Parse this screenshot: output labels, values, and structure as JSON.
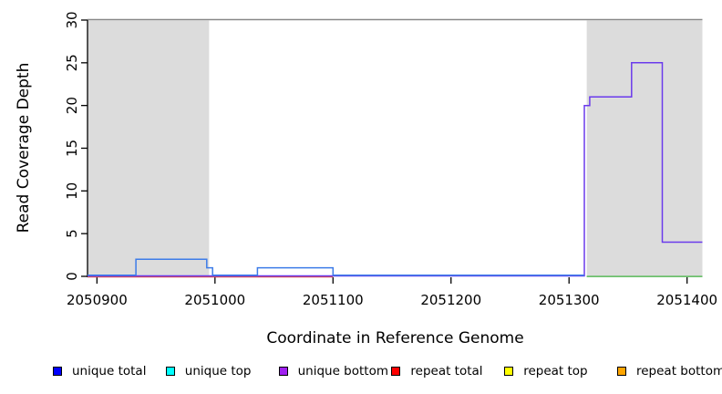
{
  "figure": {
    "background": "#ffffff",
    "plot_border_color": "#888888",
    "axis_color": "#000000",
    "shaded_region_color": "#dcdcdc"
  },
  "chart_data": {
    "type": "line",
    "title": "",
    "xlabel": "Coordinate in Reference Genome",
    "ylabel": "Read Coverage Depth",
    "xlim": [
      2050892,
      2051413
    ],
    "ylim": [
      0,
      30
    ],
    "grid": false,
    "x_ticks": [
      2050900,
      2051000,
      2051100,
      2051200,
      2051300,
      2051400
    ],
    "x_tick_labels": [
      "2050900",
      "2051000",
      "2051100",
      "2051200",
      "2051300",
      "2051400"
    ],
    "y_ticks": [
      0,
      5,
      10,
      15,
      20,
      25,
      30
    ],
    "y_tick_labels": [
      "0",
      "5",
      "10",
      "15",
      "20",
      "25",
      "30"
    ],
    "shaded_regions": [
      {
        "x_from": 2050892,
        "x_to": 2050995
      },
      {
        "x_from": 2051315,
        "x_to": 2051413
      }
    ],
    "series": [
      {
        "name": "repeat total",
        "line_color": "#e04848",
        "points": [
          [
            2050892,
            0
          ],
          [
            2051100,
            0
          ]
        ]
      },
      {
        "name": "unlabeled green",
        "line_color": "#58b858",
        "points": [
          [
            2051315,
            0
          ],
          [
            2051413,
            0
          ]
        ]
      },
      {
        "name": "unique bottom",
        "line_color": "#6a3aec",
        "points": [
          [
            2050892,
            0
          ],
          [
            2051313,
            0
          ],
          [
            2051313,
            20
          ],
          [
            2051317.5,
            20
          ],
          [
            2051317.5,
            21
          ],
          [
            2051353,
            21
          ],
          [
            2051353,
            25
          ],
          [
            2051379,
            25
          ],
          [
            2051379,
            4
          ],
          [
            2051413,
            4
          ]
        ]
      },
      {
        "name": "unique total",
        "line_color": "#3d7ce8",
        "points": [
          [
            2050892,
            0
          ],
          [
            2050933,
            0
          ],
          [
            2050933,
            2
          ],
          [
            2050993,
            2
          ],
          [
            2050993,
            1
          ],
          [
            2050998,
            1
          ],
          [
            2050998,
            0
          ],
          [
            2051036,
            0
          ],
          [
            2051036,
            1
          ],
          [
            2051100,
            1
          ],
          [
            2051100,
            0
          ],
          [
            2051313,
            0
          ]
        ]
      }
    ],
    "legend": {
      "position": "bottom",
      "items": [
        {
          "label": "unique total",
          "color": "#0000ff"
        },
        {
          "label": "unique top",
          "color": "#00ffff"
        },
        {
          "label": "unique bottom",
          "color": "#a020f0"
        },
        {
          "label": "repeat total",
          "color": "#ff0000"
        },
        {
          "label": "repeat top",
          "color": "#ffff00"
        },
        {
          "label": "repeat bottom",
          "color": "#ffa500"
        }
      ]
    }
  }
}
